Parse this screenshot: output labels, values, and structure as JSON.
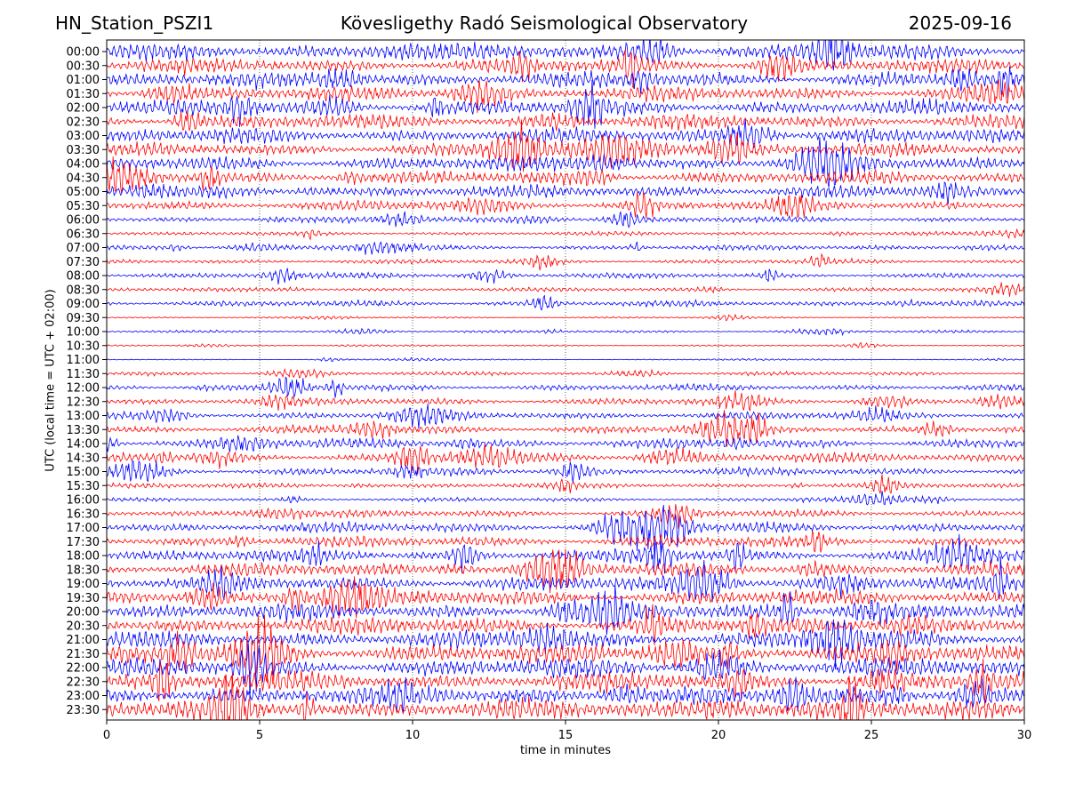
{
  "header": {
    "station": "HN_Station_PSZI1",
    "observatory": "Kövesligethy Radó Seismological Observatory",
    "date": "2025-09-16"
  },
  "chart_data": {
    "type": "line",
    "subtype": "helicorder",
    "xlabel": "time in minutes",
    "ylabel": "UTC (local time = UTC + 02:00)",
    "xlim": [
      0,
      30
    ],
    "x_ticks": [
      0,
      5,
      10,
      15,
      20,
      25,
      30
    ],
    "y_tick_labels": [
      "00:00",
      "00:30",
      "01:00",
      "01:30",
      "02:00",
      "02:30",
      "03:00",
      "03:30",
      "04:00",
      "04:30",
      "05:00",
      "05:30",
      "06:00",
      "06:30",
      "07:00",
      "07:30",
      "08:00",
      "08:30",
      "09:00",
      "09:30",
      "10:00",
      "10:30",
      "11:00",
      "11:30",
      "12:00",
      "12:30",
      "13:00",
      "13:30",
      "14:00",
      "14:30",
      "15:00",
      "15:30",
      "16:00",
      "16:30",
      "17:00",
      "17:30",
      "18:00",
      "18:30",
      "19:00",
      "19:30",
      "20:00",
      "20:30",
      "21:00",
      "21:30",
      "22:00",
      "22:30",
      "23:00",
      "23:30"
    ],
    "trace_colors": [
      "#0000ff",
      "#ff0000"
    ],
    "vertical_gridlines": true,
    "trace_activity_levels": [
      2.4,
      2.2,
      2.3,
      2.1,
      2.3,
      2.2,
      2.2,
      2.0,
      2.1,
      2.0,
      1.9,
      1.6,
      0.9,
      0.6,
      0.8,
      0.7,
      0.8,
      0.6,
      0.9,
      0.3,
      0.4,
      0.25,
      0.2,
      0.6,
      1.0,
      1.1,
      1.2,
      1.3,
      1.5,
      1.5,
      1.2,
      0.8,
      0.6,
      1.1,
      1.6,
      1.7,
      1.9,
      2.0,
      2.2,
      2.3,
      2.5,
      2.6,
      2.7,
      2.8,
      2.8,
      2.9,
      2.9,
      3.0
    ]
  }
}
